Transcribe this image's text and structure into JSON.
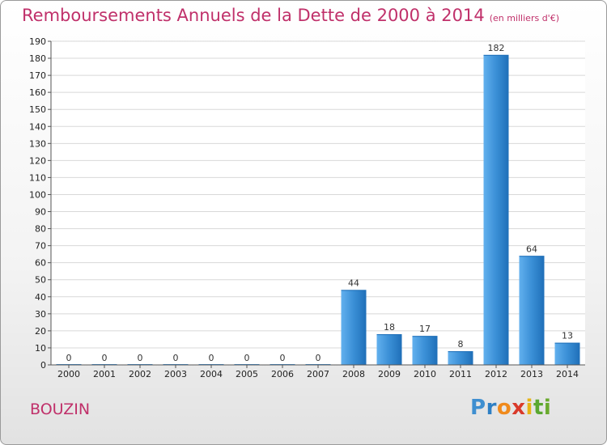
{
  "title": "Remboursements Annuels de la Dette de 2000 à 2014",
  "subtitle": "(en milliers d'€)",
  "commune": "BOUZIN",
  "logo": {
    "letters": [
      "P",
      "r",
      "o",
      "x",
      "i",
      "t",
      "i"
    ],
    "colors": [
      "#3f8fd0",
      "#2e7fc4",
      "#f08a1c",
      "#d93a2a",
      "#e7b416",
      "#5aa830",
      "#6aaa2e"
    ]
  },
  "colors": {
    "bar": "#3a8fd6",
    "bar_light": "#62b0ee",
    "bar_dark": "#1f6fb8",
    "title": "#c0306a"
  },
  "chart_data": {
    "type": "bar",
    "categories": [
      "2000",
      "2001",
      "2002",
      "2003",
      "2004",
      "2005",
      "2006",
      "2007",
      "2008",
      "2009",
      "2010",
      "2011",
      "2012",
      "2013",
      "2014"
    ],
    "values": [
      0,
      0,
      0,
      0,
      0,
      0,
      0,
      0,
      44,
      18,
      17,
      8,
      182,
      64,
      13
    ],
    "data_labels": [
      "0",
      "0",
      "0",
      "0",
      "0",
      "0",
      "0",
      "0",
      "44",
      "18",
      "17",
      "8",
      "182",
      "64",
      "13"
    ],
    "y_ticks": [
      0,
      10,
      20,
      30,
      40,
      50,
      60,
      70,
      80,
      90,
      100,
      110,
      120,
      130,
      140,
      150,
      160,
      170,
      180,
      190
    ],
    "ylim": [
      0,
      190
    ],
    "grid": true,
    "title": "Remboursements Annuels de la Dette de 2000 à 2014",
    "xlabel": "",
    "ylabel": ""
  }
}
